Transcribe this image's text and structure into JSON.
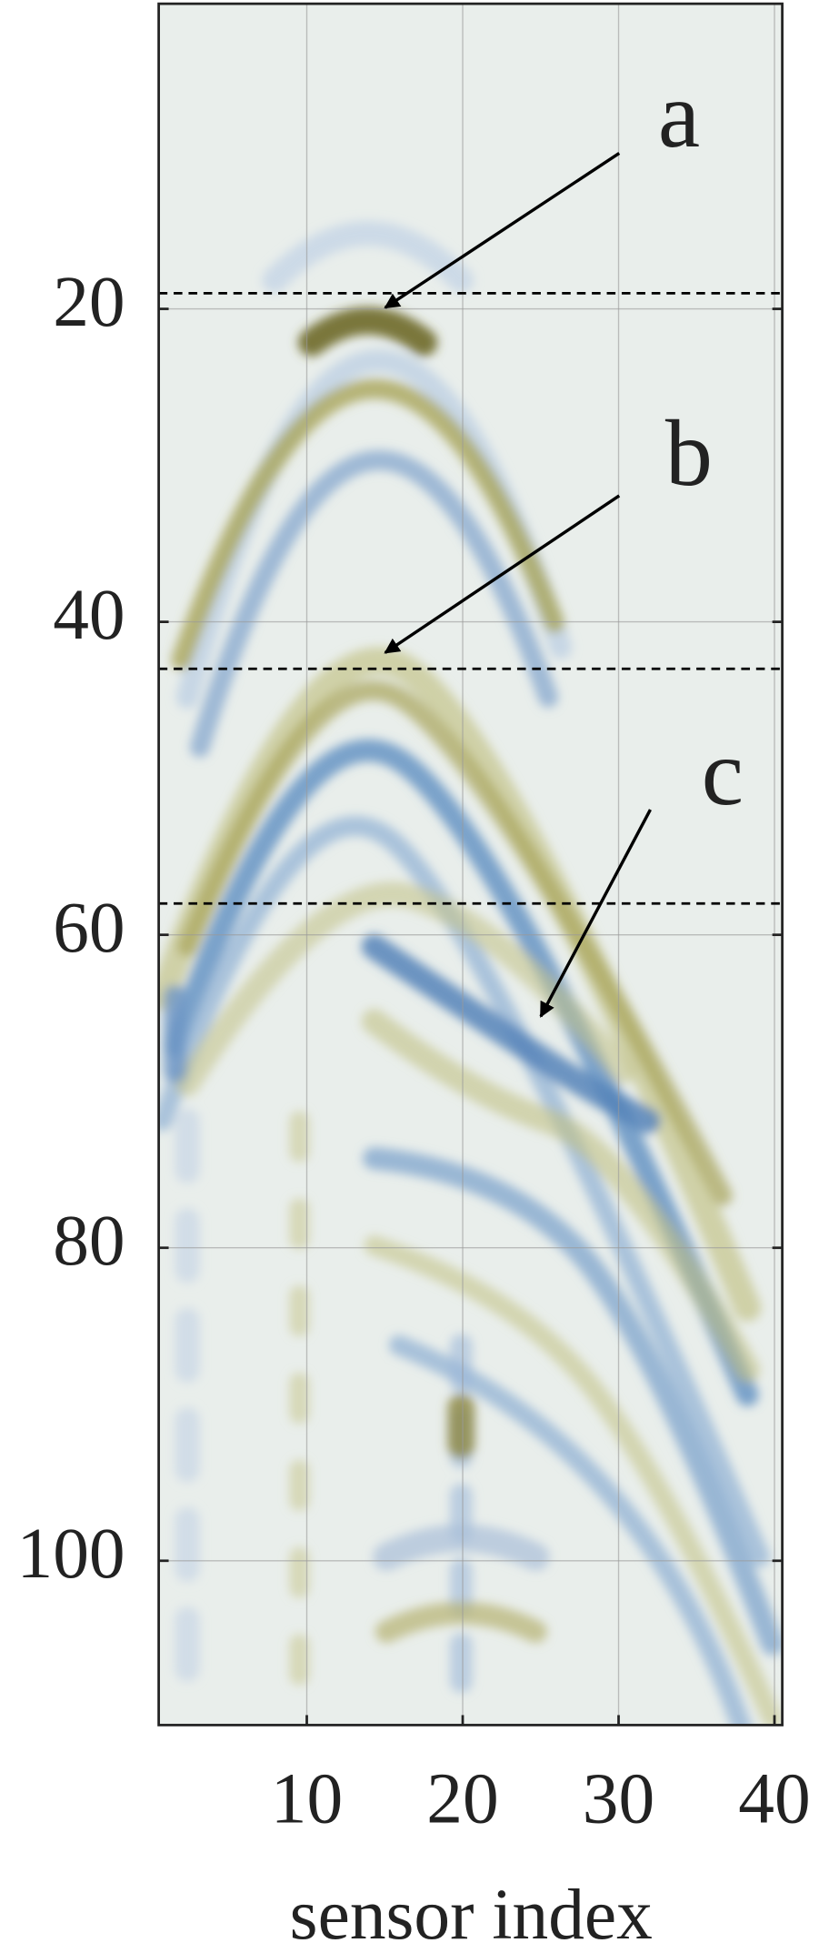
{
  "chart_data": {
    "type": "heatmap",
    "xlabel": "sensor index",
    "xlim": [
      0.5,
      40.5
    ],
    "ylim": [
      0.5,
      110.5
    ],
    "y_reversed": true,
    "xticks": [
      10,
      20,
      30,
      40
    ],
    "yticks": [
      20,
      40,
      60,
      80,
      100
    ],
    "grid": true,
    "hlines": [
      19,
      43,
      58
    ],
    "annotations": [
      "a",
      "b",
      "c"
    ]
  }
}
